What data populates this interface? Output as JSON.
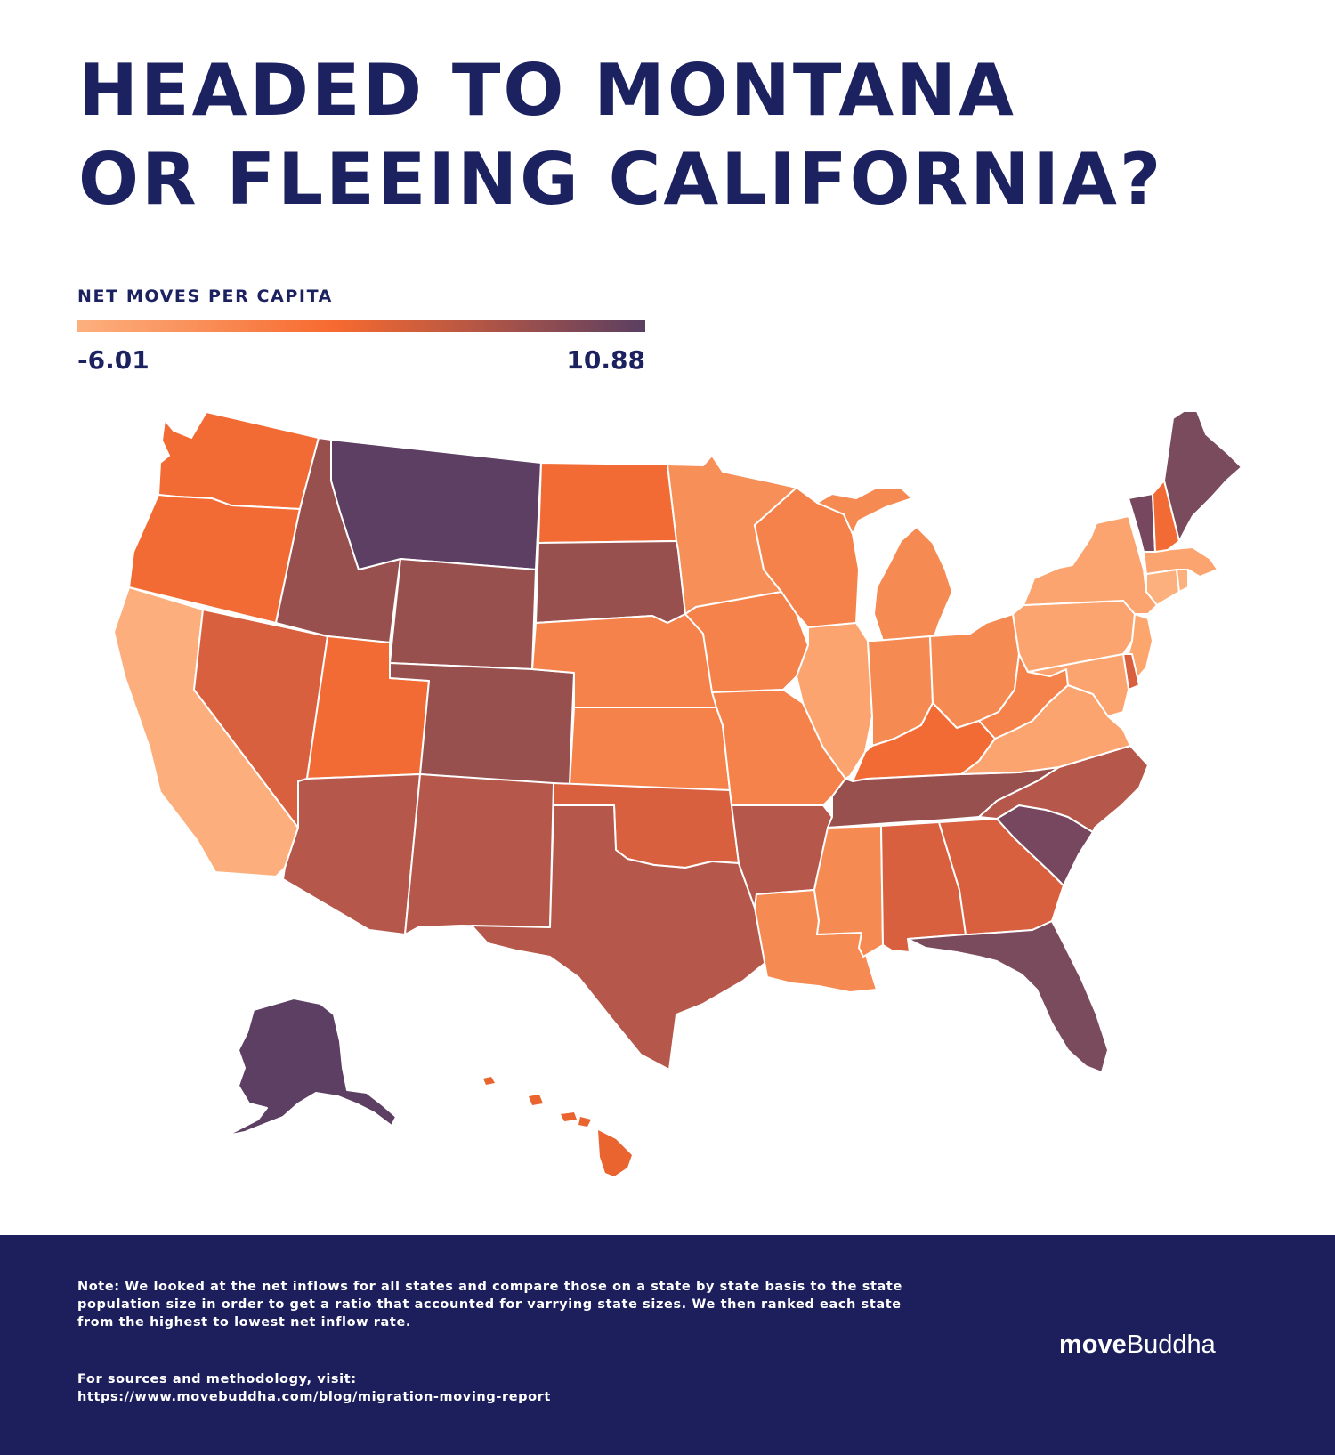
{
  "header": {
    "title_line1": "HEADED TO MONTANA",
    "title_line2": "OR FLEEING CALIFORNIA?"
  },
  "legend": {
    "title": "NET MOVES PER CAPITA",
    "min": "-6.01",
    "max": "10.88",
    "min_value": -6.01,
    "max_value": 10.88,
    "colors": [
      "#fcb07e",
      "#f76a2f",
      "#b05546",
      "#5a3f62"
    ]
  },
  "map": {
    "region": "United States",
    "encoding": "choropleth",
    "fill_by_state": {
      "WA": "#f26b35",
      "OR": "#f26b35",
      "CA": "#fcaf7d",
      "NV": "#d8603f",
      "ID": "#98504f",
      "MT": "#5c3f63",
      "WY": "#98504f",
      "UT": "#f26b35",
      "AZ": "#b5574a",
      "CO": "#98504f",
      "NM": "#b5574a",
      "ND": "#f26b35",
      "SD": "#98504f",
      "NE": "#f4824a",
      "KS": "#f4824a",
      "OK": "#d8603f",
      "TX": "#b5574a",
      "MN": "#f68f58",
      "IA": "#f4824a",
      "MO": "#f4824a",
      "AR": "#b5574a",
      "LA": "#f68a53",
      "WI": "#f4824a",
      "IL": "#fba46f",
      "MS": "#f68a53",
      "MI": "#f68a53",
      "IN": "#f68a53",
      "OH": "#f68a53",
      "KY": "#f26b35",
      "TN": "#98504f",
      "AL": "#d8603f",
      "GA": "#d8603f",
      "FL": "#7a4a5d",
      "SC": "#76475e",
      "NC": "#b5574a",
      "VA": "#fba46f",
      "WV": "#f4824a",
      "PA": "#fba46f",
      "NY": "#fba46f",
      "ME": "#7a4a5d",
      "VT": "#76475e",
      "NH": "#f26b35",
      "MA": "#fba46f",
      "CT": "#fcb07e",
      "RI": "#fcb07e",
      "NJ": "#fca56d",
      "DE": "#d8603f",
      "MD": "#fba46f",
      "AK": "#5c3f63",
      "HI": "#e9642f"
    }
  },
  "footer": {
    "note": "Note: We looked at the net inflows for all states and compare those on a state by state basis to the state population size in order to get a ratio that accounted for varrying state sizes. We then ranked each state from the highest to lowest net inflow rate.",
    "sources_label": "For sources and methodology, visit:",
    "sources_url": "https://www.movebuddha.com/blog/migration-moving-report",
    "logo_part1": "move",
    "logo_part2": "Buddha"
  }
}
